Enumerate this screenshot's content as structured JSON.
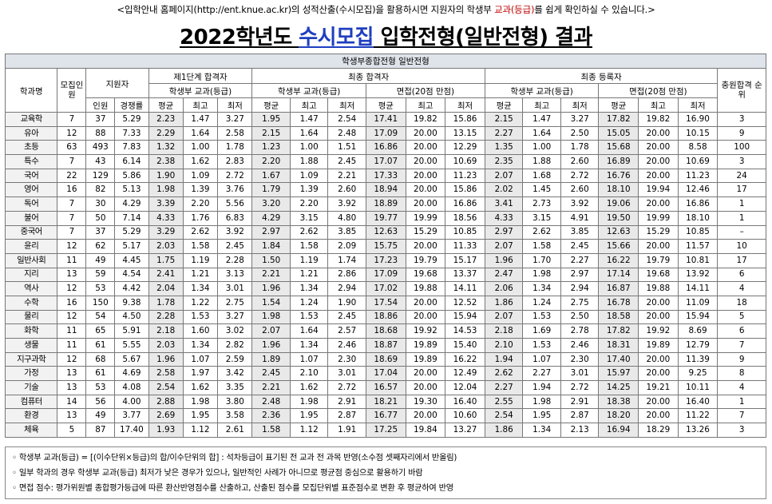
{
  "top_note": {
    "before": "<입학안내 홈페이지(http://ent.knue.ac.kr)의 성적산출(수시모집)을 활용하시면 지원자의 학생부 ",
    "highlight": "교과(등급)",
    "after": "를 쉽게 확인하실 수 있습니다.>"
  },
  "title": {
    "part1": "2022학년도 ",
    "part2": "수시모집",
    "part3": " 입학전형(일반전형) 결과"
  },
  "table": {
    "banner": "학생부종합전형 일반전형",
    "headers": {
      "dept": "학과명",
      "quota": "모집인원",
      "applicants": "지원자",
      "applicants_count": "인원",
      "competition": "경쟁률",
      "stage1": "제1단계 합격자",
      "final_pass": "최종 합격자",
      "final_reg": "최종 등록자",
      "gpa": "학생부 교과(등급)",
      "interview": "면접(20점 만점)",
      "avg": "평균",
      "max": "최고",
      "min": "최저",
      "rank": "충원합격 순위"
    },
    "rows": [
      [
        "교육학",
        "7",
        "37",
        "5.29",
        "2.23",
        "1.47",
        "3.27",
        "1.95",
        "1.47",
        "2.54",
        "17.41",
        "19.82",
        "15.86",
        "2.15",
        "1.47",
        "3.27",
        "17.82",
        "19.82",
        "16.90",
        "3"
      ],
      [
        "유아",
        "12",
        "88",
        "7.33",
        "2.29",
        "1.64",
        "2.58",
        "2.15",
        "1.64",
        "2.48",
        "17.09",
        "20.00",
        "13.15",
        "2.27",
        "1.64",
        "2.50",
        "15.05",
        "20.00",
        "10.15",
        "9"
      ],
      [
        "초등",
        "63",
        "493",
        "7.83",
        "1.32",
        "1.00",
        "1.78",
        "1.23",
        "1.00",
        "1.51",
        "16.86",
        "20.00",
        "12.29",
        "1.35",
        "1.00",
        "1.78",
        "15.68",
        "20.00",
        "8.58",
        "100"
      ],
      [
        "특수",
        "7",
        "43",
        "6.14",
        "2.38",
        "1.62",
        "2.83",
        "2.20",
        "1.88",
        "2.45",
        "17.07",
        "20.00",
        "10.69",
        "2.35",
        "1.88",
        "2.60",
        "16.89",
        "20.00",
        "10.69",
        "3"
      ],
      [
        "국어",
        "22",
        "129",
        "5.86",
        "1.90",
        "1.09",
        "2.72",
        "1.67",
        "1.09",
        "2.21",
        "17.33",
        "20.00",
        "11.23",
        "2.07",
        "1.68",
        "2.72",
        "16.76",
        "20.00",
        "11.23",
        "24"
      ],
      [
        "영어",
        "16",
        "82",
        "5.13",
        "1.98",
        "1.39",
        "3.76",
        "1.79",
        "1.39",
        "2.60",
        "18.94",
        "20.00",
        "15.86",
        "2.02",
        "1.45",
        "2.60",
        "18.10",
        "19.94",
        "12.46",
        "17"
      ],
      [
        "독어",
        "7",
        "30",
        "4.29",
        "3.39",
        "2.20",
        "5.56",
        "3.20",
        "2.20",
        "3.92",
        "18.89",
        "20.00",
        "16.86",
        "3.41",
        "2.73",
        "3.92",
        "19.06",
        "20.00",
        "16.86",
        "1"
      ],
      [
        "불어",
        "7",
        "50",
        "7.14",
        "4.33",
        "1.76",
        "6.83",
        "4.29",
        "3.15",
        "4.80",
        "19.77",
        "19.99",
        "18.56",
        "4.33",
        "3.15",
        "4.91",
        "19.50",
        "19.99",
        "18.10",
        "1"
      ],
      [
        "중국어",
        "7",
        "37",
        "5.29",
        "3.29",
        "2.62",
        "3.92",
        "2.97",
        "2.62",
        "3.85",
        "12.63",
        "15.29",
        "10.85",
        "2.97",
        "2.62",
        "3.85",
        "12.63",
        "15.29",
        "10.85",
        "–"
      ],
      [
        "윤리",
        "12",
        "62",
        "5.17",
        "2.03",
        "1.58",
        "2.45",
        "1.84",
        "1.58",
        "2.09",
        "15.75",
        "20.00",
        "11.33",
        "2.07",
        "1.58",
        "2.45",
        "15.66",
        "20.00",
        "11.57",
        "10"
      ],
      [
        "일반사회",
        "11",
        "49",
        "4.45",
        "1.75",
        "1.19",
        "2.28",
        "1.50",
        "1.19",
        "1.74",
        "17.23",
        "19.79",
        "15.17",
        "1.96",
        "1.70",
        "2.27",
        "16.22",
        "19.79",
        "10.81",
        "17"
      ],
      [
        "지리",
        "13",
        "59",
        "4.54",
        "2.41",
        "1.21",
        "3.13",
        "2.21",
        "1.21",
        "2.86",
        "17.09",
        "19.68",
        "13.37",
        "2.47",
        "1.98",
        "2.97",
        "17.14",
        "19.68",
        "13.92",
        "6"
      ],
      [
        "역사",
        "12",
        "53",
        "4.42",
        "2.04",
        "1.34",
        "3.01",
        "1.96",
        "1.34",
        "2.94",
        "17.02",
        "19.88",
        "14.11",
        "2.06",
        "1.34",
        "2.94",
        "16.87",
        "19.88",
        "14.11",
        "4"
      ],
      [
        "수학",
        "16",
        "150",
        "9.38",
        "1.78",
        "1.22",
        "2.75",
        "1.54",
        "1.24",
        "1.90",
        "17.54",
        "20.00",
        "12.52",
        "1.86",
        "1.24",
        "2.75",
        "16.78",
        "20.00",
        "11.09",
        "18"
      ],
      [
        "물리",
        "12",
        "54",
        "4.50",
        "2.28",
        "1.53",
        "3.27",
        "1.98",
        "1.53",
        "2.45",
        "18.86",
        "20.00",
        "15.94",
        "2.07",
        "1.53",
        "2.50",
        "18.58",
        "20.00",
        "15.94",
        "5"
      ],
      [
        "화학",
        "11",
        "65",
        "5.91",
        "2.18",
        "1.60",
        "3.02",
        "2.07",
        "1.64",
        "2.57",
        "18.68",
        "19.92",
        "14.53",
        "2.18",
        "1.69",
        "2.78",
        "17.82",
        "19.92",
        "8.69",
        "6"
      ],
      [
        "생물",
        "11",
        "61",
        "5.55",
        "2.03",
        "1.34",
        "2.82",
        "1.96",
        "1.34",
        "2.46",
        "18.87",
        "19.89",
        "15.40",
        "2.10",
        "1.53",
        "2.46",
        "18.31",
        "19.89",
        "12.79",
        "7"
      ],
      [
        "지구과학",
        "12",
        "68",
        "5.67",
        "1.96",
        "1.07",
        "2.59",
        "1.89",
        "1.07",
        "2.30",
        "18.69",
        "19.89",
        "16.22",
        "1.94",
        "1.07",
        "2.30",
        "17.40",
        "20.00",
        "11.39",
        "9"
      ],
      [
        "가정",
        "13",
        "61",
        "4.69",
        "2.58",
        "1.97",
        "3.42",
        "2.45",
        "2.10",
        "3.01",
        "17.04",
        "20.00",
        "12.49",
        "2.62",
        "2.27",
        "3.01",
        "15.97",
        "20.00",
        "9.25",
        "8"
      ],
      [
        "기술",
        "13",
        "53",
        "4.08",
        "2.54",
        "1.62",
        "3.35",
        "2.21",
        "1.62",
        "2.72",
        "16.57",
        "20.00",
        "12.04",
        "2.27",
        "1.94",
        "2.72",
        "14.25",
        "19.21",
        "10.11",
        "4"
      ],
      [
        "컴퓨터",
        "14",
        "56",
        "4.00",
        "2.88",
        "1.98",
        "3.80",
        "2.48",
        "1.98",
        "2.91",
        "18.21",
        "19.30",
        "16.40",
        "2.55",
        "1.98",
        "2.91",
        "18.38",
        "20.00",
        "16.40",
        "1"
      ],
      [
        "환경",
        "13",
        "49",
        "3.77",
        "2.69",
        "1.95",
        "3.58",
        "2.36",
        "1.95",
        "2.87",
        "16.77",
        "20.00",
        "10.60",
        "2.54",
        "1.95",
        "2.87",
        "18.20",
        "20.00",
        "11.22",
        "7"
      ],
      [
        "체육",
        "5",
        "87",
        "17.40",
        "1.93",
        "1.12",
        "2.61",
        "1.58",
        "1.12",
        "1.91",
        "17.25",
        "19.84",
        "13.27",
        "1.86",
        "1.34",
        "2.13",
        "16.94",
        "18.29",
        "13.26",
        "3"
      ]
    ]
  },
  "notes": [
    "◦ 학생부 교과(등급) = [(이수단위×등급)의 합/이수단위의 합] : 석차등급이 표기된 전 교과 전 과목 반영(소수점 셋째자리에서 반올림)",
    "◦ 일부 학과의 경우 학생부 교과(등급) 최저가 낮은 경우가 있으나, 일반적인 사례가 아니므로 평균점 중심으로 활용하기 바람",
    "◦ 면접 점수: 평가위원별 종합평가등급에 따른 환산반영점수를 산출하고, 산출된 점수를 모집단위별 표준점수로 변환 후 평균하여 반영"
  ]
}
